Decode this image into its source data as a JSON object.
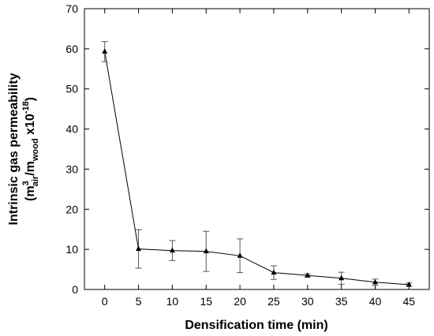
{
  "chart_data": {
    "type": "line",
    "title": "",
    "xlabel": "Densification time (min)",
    "ylabel_line1": "Intrinsic gas permeability",
    "ylabel_line2": {
      "open": "(m",
      "sup1": "3",
      "sub1": "air",
      "mid": "/m",
      "sub2": "wood",
      "times": " x10",
      "sup2": "-18",
      "close": ")"
    },
    "xlim": [
      -3,
      48
    ],
    "ylim": [
      0,
      70
    ],
    "xticks": [
      0,
      5,
      10,
      15,
      20,
      25,
      30,
      35,
      40,
      45
    ],
    "yticks": [
      0,
      10,
      20,
      30,
      40,
      50,
      60,
      70
    ],
    "grid": false,
    "series": [
      {
        "x": [
          0,
          5,
          10,
          15,
          20,
          25,
          30,
          35,
          40,
          45
        ],
        "y": [
          59.3,
          10.1,
          9.7,
          9.5,
          8.4,
          4.2,
          3.5,
          2.8,
          1.8,
          1.2
        ],
        "yerr": [
          2.5,
          4.8,
          2.5,
          5.0,
          4.2,
          1.7,
          0.4,
          1.5,
          0.8,
          0.4
        ],
        "marker": "triangle-up",
        "color": "#000000"
      }
    ]
  }
}
